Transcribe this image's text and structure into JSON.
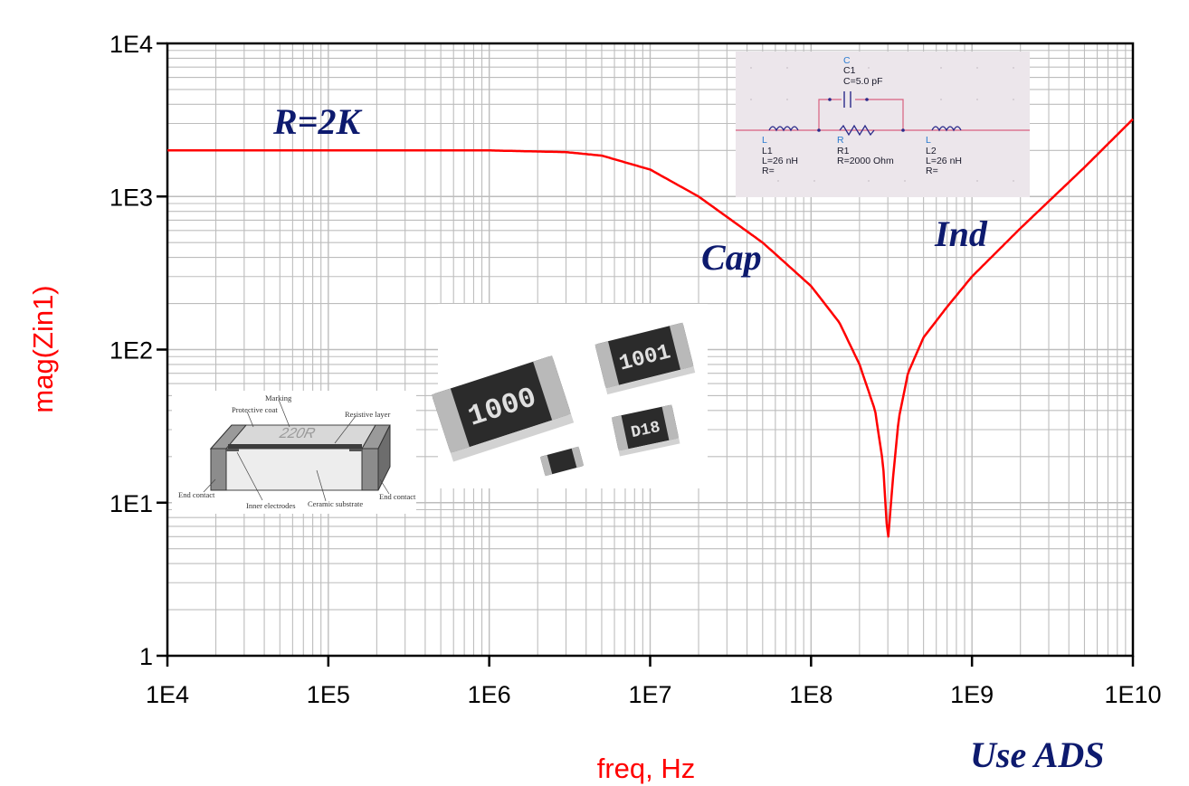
{
  "chart_data": {
    "type": "line",
    "xlabel": "freq, Hz",
    "ylabel": "mag(Zin1)",
    "xscale": "log",
    "yscale": "log",
    "xlim": [
      10000,
      10000000000
    ],
    "ylim": [
      1,
      10000
    ],
    "grid": true,
    "x_tick_labels": [
      "1E4",
      "1E5",
      "1E6",
      "1E7",
      "1E8",
      "1E9",
      "1E10"
    ],
    "y_tick_labels": [
      "1",
      "1E1",
      "1E2",
      "1E3",
      "1E4"
    ],
    "series": [
      {
        "color": "#ff0000",
        "x": [
          10000,
          100000,
          1000000,
          3000000,
          5000000,
          10000000,
          20000000,
          50000000,
          100000000,
          150000000,
          200000000,
          250000000,
          280000000,
          300000000,
          320000000,
          350000000,
          400000000,
          500000000,
          700000000,
          1000000000,
          2000000000,
          5000000000,
          10000000000
        ],
        "y": [
          2000,
          2000,
          2000,
          1950,
          1850,
          1500,
          1000,
          500,
          260,
          150,
          80,
          40,
          18,
          5.5,
          13,
          35,
          70,
          120,
          190,
          300,
          620,
          1550,
          3200
        ]
      }
    ],
    "annotations": [
      "R=2K",
      "Cap",
      "Ind",
      "Use ADS"
    ]
  },
  "insets": {
    "schematic": {
      "capacitor": [
        "C",
        "C1",
        "C=5.0 pF"
      ],
      "inductor_left": [
        "L",
        "L1",
        "L=26 nH",
        "R="
      ],
      "resistor": [
        "R",
        "R1",
        "R=2000 Ohm"
      ],
      "inductor_right": [
        "L",
        "L2",
        "L=26 nH",
        "R="
      ]
    },
    "cross_section": {
      "marking": "220R",
      "labels": [
        "Marking",
        "Protective coat",
        "Resistive layer",
        "End contact",
        "Inner electrodes",
        "Ceramic substrate",
        "End contact"
      ]
    },
    "photo": {
      "chip_codes": [
        "1000",
        "1001",
        "D18"
      ]
    }
  },
  "colors": {
    "curve": "#ff0000",
    "axis_title": "#ff0000",
    "annotation": "#0d1a6e",
    "grid": "#bdbdbd"
  }
}
